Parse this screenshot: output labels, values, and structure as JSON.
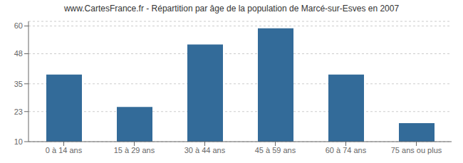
{
  "chart_data": {
    "type": "bar",
    "title": "www.CartesFrance.fr - Répartition par âge de la population de Marcé-sur-Esves en 2007",
    "categories": [
      "0 à 14 ans",
      "15 à 29 ans",
      "30 à 44 ans",
      "45 à 59 ans",
      "60 à 74 ans",
      "75 ans ou plus"
    ],
    "values": [
      39,
      25,
      52,
      59,
      39,
      18
    ],
    "color": "#336b99",
    "ylim": [
      10,
      62
    ],
    "yticks": [
      10,
      23,
      35,
      48,
      60
    ],
    "grid": true
  }
}
